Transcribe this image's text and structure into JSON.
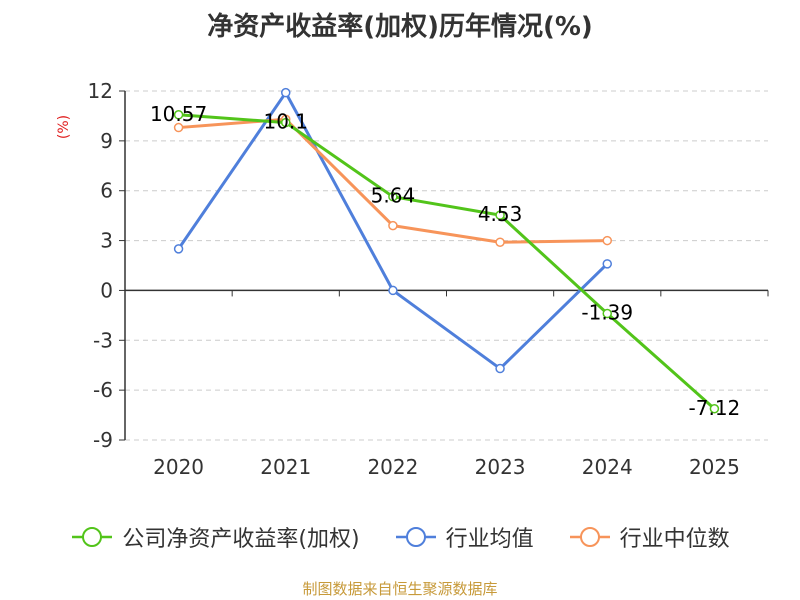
{
  "chart_data": {
    "type": "line",
    "title": "净资产收益率(加权)历年情况(%)",
    "ylabel": "(%)",
    "categories": [
      "2020",
      "2021",
      "2022",
      "2023",
      "2024",
      "2025"
    ],
    "ylim": [
      -9,
      12
    ],
    "yticks": [
      12,
      9,
      6,
      3,
      0,
      -3,
      -6,
      -9
    ],
    "grid": true,
    "legend_position": "bottom",
    "series": [
      {
        "name": "公司净资产收益率(加权)",
        "color": "#52c41a",
        "values": [
          10.57,
          10.1,
          5.64,
          4.53,
          -1.39,
          -7.12
        ],
        "labels": [
          "10.57",
          "10.1",
          "5.64",
          "4.53",
          "-1.39",
          "-7.12"
        ]
      },
      {
        "name": "行业均值",
        "color": "#4f7fdb",
        "values": [
          2.5,
          11.9,
          0.0,
          -4.7,
          1.6,
          null
        ]
      },
      {
        "name": "行业中位数",
        "color": "#f7945a",
        "values": [
          9.8,
          10.3,
          3.9,
          2.9,
          3.0,
          null
        ]
      }
    ]
  },
  "source_text": "制图数据来自恒生聚源数据库"
}
